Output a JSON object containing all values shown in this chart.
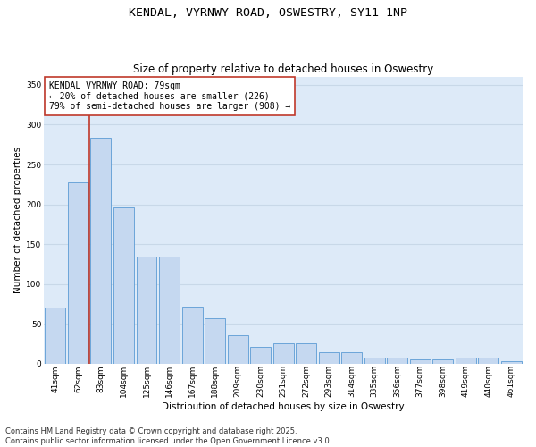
{
  "title": "KENDAL, VYRNWY ROAD, OSWESTRY, SY11 1NP",
  "subtitle": "Size of property relative to detached houses in Oswestry",
  "xlabel": "Distribution of detached houses by size in Oswestry",
  "ylabel": "Number of detached properties",
  "categories": [
    "41sqm",
    "62sqm",
    "83sqm",
    "104sqm",
    "125sqm",
    "146sqm",
    "167sqm",
    "188sqm",
    "209sqm",
    "230sqm",
    "251sqm",
    "272sqm",
    "293sqm",
    "314sqm",
    "335sqm",
    "356sqm",
    "377sqm",
    "398sqm",
    "419sqm",
    "440sqm",
    "461sqm"
  ],
  "values": [
    70,
    228,
    284,
    196,
    134,
    134,
    72,
    57,
    36,
    21,
    25,
    25,
    14,
    14,
    7,
    7,
    5,
    5,
    7,
    7,
    3
  ],
  "bar_color": "#c5d8f0",
  "bar_edge_color": "#5b9bd5",
  "vline_color": "#c0392b",
  "vline_x": 1.5,
  "annotation_text": "KENDAL VYRNWY ROAD: 79sqm\n← 20% of detached houses are smaller (226)\n79% of semi-detached houses are larger (908) →",
  "annotation_box_facecolor": "#ffffff",
  "annotation_box_edgecolor": "#c0392b",
  "ylim": [
    0,
    360
  ],
  "yticks": [
    0,
    50,
    100,
    150,
    200,
    250,
    300,
    350
  ],
  "grid_color": "#c8d8e8",
  "bg_color": "#ddeaf8",
  "footer_text": "Contains HM Land Registry data © Crown copyright and database right 2025.\nContains public sector information licensed under the Open Government Licence v3.0.",
  "title_fontsize": 9.5,
  "subtitle_fontsize": 8.5,
  "axis_label_fontsize": 7.5,
  "tick_fontsize": 6.5,
  "annotation_fontsize": 7,
  "footer_fontsize": 6
}
